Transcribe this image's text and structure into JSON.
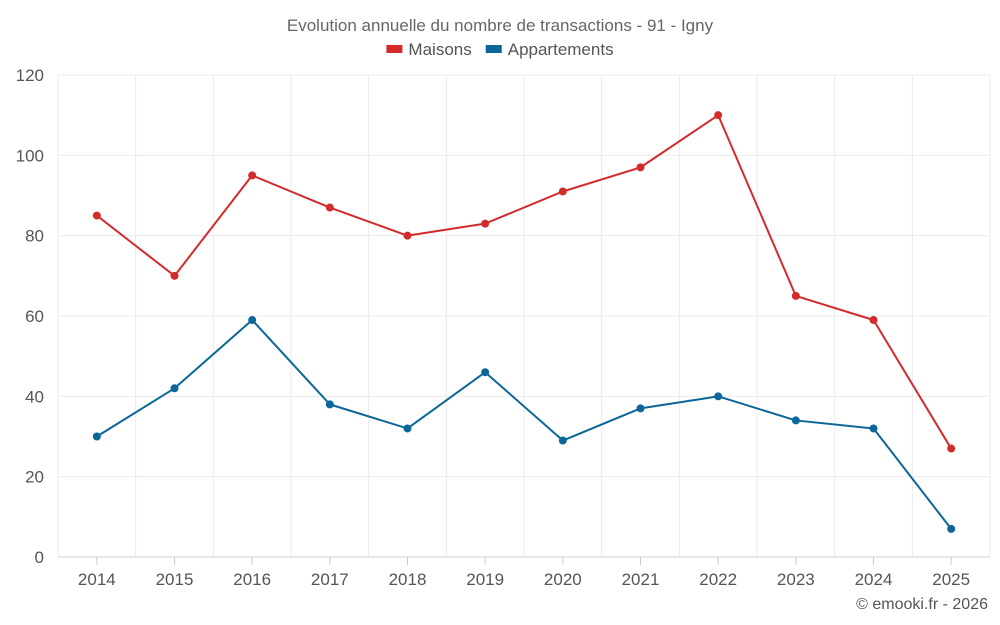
{
  "chart_data": {
    "type": "line",
    "title": "Evolution annuelle du nombre de transactions - 91 - Igny",
    "categories": [
      "2014",
      "2015",
      "2016",
      "2017",
      "2018",
      "2019",
      "2020",
      "2021",
      "2022",
      "2023",
      "2024",
      "2025"
    ],
    "series": [
      {
        "name": "Maisons",
        "color": "#d32b2b",
        "values": [
          85,
          70,
          95,
          87,
          80,
          83,
          91,
          97,
          110,
          65,
          59,
          27
        ]
      },
      {
        "name": "Appartements",
        "color": "#0b6699",
        "values": [
          30,
          42,
          59,
          38,
          32,
          46,
          29,
          37,
          40,
          34,
          32,
          7
        ]
      }
    ],
    "ylim": [
      0,
      120
    ],
    "yticks": [
      0,
      20,
      40,
      60,
      80,
      100,
      120
    ],
    "xlabel": "",
    "ylabel": "",
    "legend": "top-center",
    "grid": true
  },
  "credit": "© emooki.fr - 2026"
}
